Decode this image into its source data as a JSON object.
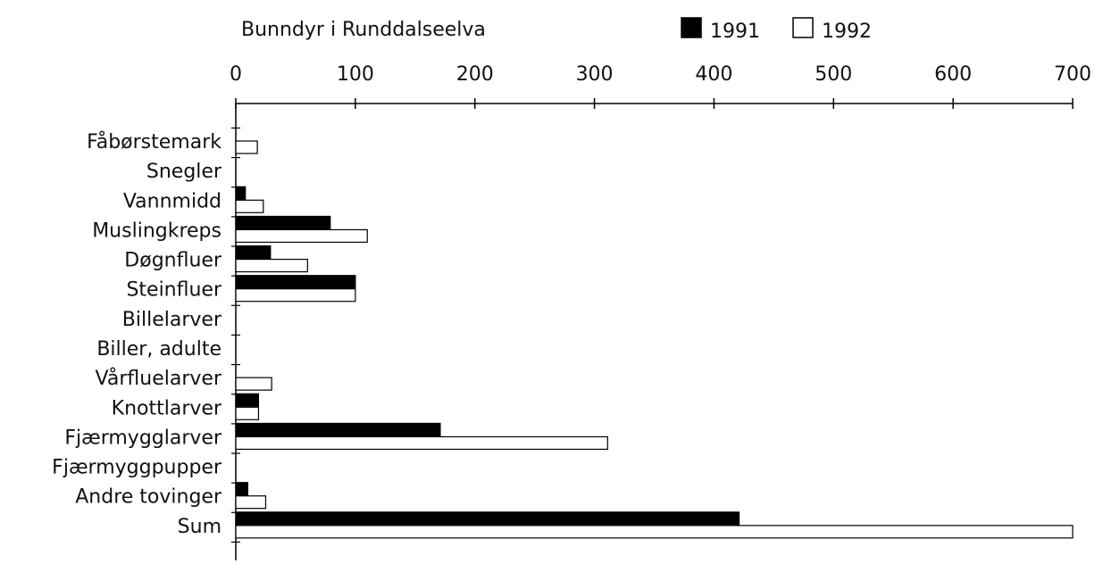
{
  "chart_data": {
    "type": "bar",
    "orientation": "horizontal",
    "title": "Bunndyr i Runddalseelva",
    "xlabel": "",
    "ylabel": "",
    "xlim": [
      0,
      700
    ],
    "ticks": [
      "0",
      "100",
      "200",
      "300",
      "400",
      "500",
      "600",
      "700"
    ],
    "grid": false,
    "legend_position": "top",
    "categories": [
      "Fåbørstemark",
      "Snegler",
      "Vannmidd",
      "Muslingkreps",
      "Døgnfluer",
      "Steinfluer",
      "Billelarver",
      "Biller, adulte",
      "Vårfluelarver",
      "Knottlarver",
      "Fjærmygglarver",
      "Fjærmyggpupper",
      "Andre tovinger",
      "Sum"
    ],
    "series": [
      {
        "name": "1991",
        "color": "#000000",
        "values": [
          0,
          0,
          8,
          79,
          29,
          100,
          0,
          0,
          0,
          19,
          171,
          0,
          10,
          421
        ]
      },
      {
        "name": "1992",
        "color": "#ffffff",
        "values": [
          18,
          0,
          23,
          110,
          60,
          100,
          0,
          0,
          30,
          19,
          311,
          0,
          25,
          700
        ]
      }
    ]
  }
}
